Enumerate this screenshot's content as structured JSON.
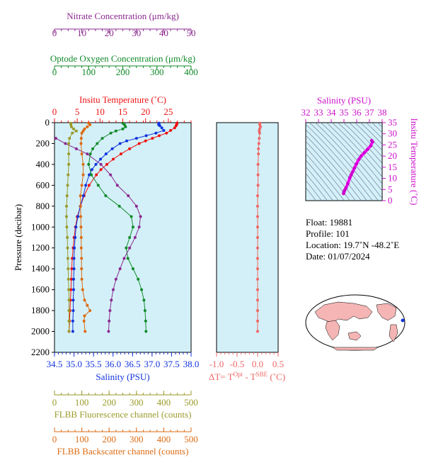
{
  "colors": {
    "nitrate": "#8b2a8f",
    "oxygen": "#118a2a",
    "temperature": "#ee1111",
    "salinity": "#1133dd",
    "fluorescence": "#9a9a2a",
    "backscatter": "#dd6a11",
    "dt": "#ee6666",
    "ts_title": "#cc11cc",
    "panel_bg": "#d3f0f8",
    "world_land": "#f5b5b5"
  },
  "chart_data": [
    {
      "type": "line",
      "ylabel": "Pressure (decibar)",
      "y_ticks": [
        0,
        200,
        400,
        600,
        800,
        1000,
        1200,
        1400,
        1600,
        1800,
        2000,
        2200
      ],
      "ylim": [
        0,
        2200
      ],
      "inverted_y": true,
      "axes": {
        "nitrate": {
          "label": "Nitrate Concentration (μm/kg)",
          "range": [
            0,
            50
          ],
          "ticks": [
            0,
            10,
            20,
            30,
            40,
            50
          ],
          "position": "top"
        },
        "oxygen": {
          "label": "Optode Oxygen Concentration (μm/kg)",
          "range": [
            0,
            400
          ],
          "ticks": [
            0,
            100,
            200,
            300,
            400
          ],
          "position": "top"
        },
        "temperature": {
          "label": "Insitu Temperature (˚C)",
          "range": [
            0,
            30
          ],
          "ticks": [
            0,
            5,
            10,
            15,
            20,
            25
          ],
          "position": "top"
        },
        "salinity": {
          "label": "Salinity (PSU)",
          "range": [
            34.5,
            38.0
          ],
          "ticks": [
            34.5,
            35.0,
            35.5,
            36.0,
            36.5,
            37.0,
            37.5,
            38.0
          ],
          "tick_labels": [
            "34.5",
            "35.0",
            "35.5",
            "36.0",
            "36.5",
            "37.0",
            "37.5",
            "38.0"
          ],
          "position": "bottom"
        },
        "fluorescence": {
          "label": "FLBB Fluorescence channel (counts)",
          "range": [
            0,
            500
          ],
          "ticks": [
            0,
            100,
            200,
            300,
            400,
            500
          ],
          "position": "bottom"
        },
        "backscatter": {
          "label": "FLBB Backscatter channel (counts)",
          "range": [
            0,
            500
          ],
          "ticks": [
            0,
            100,
            200,
            300,
            400,
            500
          ],
          "position": "bottom"
        }
      },
      "series": [
        {
          "key": "temperature",
          "axis": "temperature",
          "pressure": [
            5,
            10,
            20,
            30,
            50,
            75,
            100,
            125,
            150,
            175,
            200,
            250,
            300,
            350,
            400,
            450,
            500,
            600,
            700,
            800,
            900,
            1000,
            1100,
            1200,
            1300,
            1400,
            1500,
            1600,
            1700,
            1800,
            1900,
            2000
          ],
          "values": [
            26.9,
            26.9,
            26.8,
            26.7,
            26.4,
            25.5,
            24.6,
            23.0,
            21.5,
            20.0,
            18.6,
            16.5,
            14.6,
            12.9,
            11.5,
            10.2,
            9.2,
            7.6,
            6.5,
            5.7,
            5.0,
            4.6,
            4.3,
            4.1,
            3.9,
            3.8,
            3.7,
            3.6,
            3.5,
            3.4,
            3.3,
            3.2
          ]
        },
        {
          "key": "salinity",
          "axis": "salinity",
          "pressure": [
            5,
            10,
            20,
            30,
            50,
            75,
            100,
            125,
            150,
            175,
            200,
            250,
            300,
            350,
            400,
            450,
            500,
            600,
            700,
            800,
            900,
            1000,
            1100,
            1200,
            1300,
            1400,
            1500,
            1600,
            1700,
            1800,
            1900,
            2000
          ],
          "values": [
            37.18,
            37.17,
            37.17,
            37.2,
            37.25,
            37.3,
            37.1,
            36.85,
            36.6,
            36.35,
            36.18,
            35.98,
            35.82,
            35.68,
            35.56,
            35.46,
            35.39,
            35.3,
            35.24,
            35.16,
            35.1,
            35.05,
            35.03,
            35.01,
            35.0,
            35.0,
            34.99,
            34.99,
            34.98,
            34.98,
            34.97,
            34.97
          ]
        },
        {
          "key": "oxygen",
          "axis": "oxygen",
          "pressure": [
            5,
            20,
            40,
            60,
            80,
            100,
            150,
            200,
            250,
            300,
            400,
            500,
            600,
            700,
            800,
            900,
            1000,
            1100,
            1200,
            1300,
            1400,
            1500,
            1600,
            1700,
            1800,
            1900,
            2000
          ],
          "values": [
            200,
            205,
            208,
            200,
            180,
            165,
            140,
            125,
            112,
            105,
            100,
            108,
            128,
            150,
            190,
            225,
            230,
            220,
            210,
            215,
            230,
            245,
            255,
            262,
            265,
            267,
            268
          ]
        },
        {
          "key": "nitrate",
          "axis": "nitrate",
          "pressure": [
            150,
            200,
            250,
            300,
            400,
            500,
            600,
            700,
            800,
            900,
            1000,
            1100,
            1200,
            1300,
            1400,
            1500,
            1600,
            1700,
            1800,
            1900,
            2000
          ],
          "values": [
            0.5,
            4.0,
            8.0,
            12.0,
            17.0,
            20.5,
            23.0,
            27.0,
            30.0,
            31.5,
            31.0,
            29.5,
            27.5,
            25.5,
            24.0,
            22.5,
            21.5,
            20.8,
            20.3,
            20.0,
            19.8
          ]
        },
        {
          "key": "fluorescence",
          "axis": "fluorescence",
          "pressure": [
            5,
            20,
            40,
            60,
            80,
            100,
            150,
            200,
            300,
            400,
            500,
            600,
            700,
            800,
            900,
            1000,
            1100,
            1200,
            1300,
            1400,
            1500,
            1600,
            1700,
            1800,
            1900,
            2000
          ],
          "values": [
            60,
            60,
            62,
            70,
            80,
            65,
            55,
            52,
            52,
            52,
            50,
            48,
            46,
            44,
            44,
            45,
            47,
            48,
            49,
            50,
            51,
            52,
            53,
            53,
            53,
            53
          ]
        },
        {
          "key": "backscatter",
          "axis": "backscatter",
          "pressure": [
            5,
            20,
            40,
            60,
            80,
            100,
            150,
            200,
            300,
            400,
            500,
            600,
            700,
            800,
            900,
            1000,
            1100,
            1200,
            1300,
            1400,
            1500,
            1600,
            1700,
            1750,
            1800,
            1850,
            1900,
            2000
          ],
          "values": [
            125,
            130,
            120,
            110,
            105,
            100,
            98,
            97,
            100,
            105,
            105,
            100,
            95,
            95,
            96,
            97,
            98,
            98,
            99,
            99,
            100,
            103,
            110,
            120,
            130,
            110,
            108,
            112
          ]
        }
      ]
    },
    {
      "type": "line",
      "xlabel_parts": [
        "ΔT= T",
        "Opt",
        " - T",
        "SBE",
        " (˚C)"
      ],
      "xlim": [
        -1.0,
        0.5
      ],
      "x_ticks": [
        -1.0,
        -0.5,
        0.0,
        0.5
      ],
      "x_tick_labels": [
        "-1.0",
        "-0.5",
        "0.0",
        "0.5"
      ],
      "ylim": [
        0,
        2200
      ],
      "inverted_y": true,
      "series": [
        {
          "key": "dt",
          "pressure": [
            5,
            20,
            40,
            60,
            80,
            100,
            150,
            200,
            250,
            300,
            400,
            500,
            600,
            700,
            800,
            900,
            1000,
            1100,
            1200,
            1300,
            1400,
            1500,
            1600,
            1700,
            1800,
            1900,
            2000
          ],
          "values": [
            0.06,
            0.05,
            0.07,
            0.05,
            0.04,
            0.05,
            0.04,
            0.03,
            0.02,
            0.02,
            0.01,
            0.01,
            0.01,
            0.0,
            0.0,
            0.0,
            0.0,
            0.0,
            0.0,
            0.0,
            0.0,
            0.0,
            0.0,
            0.0,
            0.0,
            0.0,
            0.0
          ]
        }
      ]
    },
    {
      "type": "scatter",
      "title": "Salinity (PSU)",
      "ylabel": "Insitu Temperature (˚C)",
      "xlim": [
        32,
        38
      ],
      "x_ticks": [
        32,
        33,
        34,
        35,
        36,
        37,
        38
      ],
      "ylim": [
        0,
        35
      ],
      "y_ticks": [
        0,
        5,
        10,
        15,
        20,
        25,
        30,
        35
      ],
      "points": [
        [
          34.97,
          3.2
        ],
        [
          35.0,
          3.9
        ],
        [
          35.05,
          4.6
        ],
        [
          35.16,
          5.7
        ],
        [
          35.3,
          7.6
        ],
        [
          35.46,
          10.2
        ],
        [
          35.56,
          11.5
        ],
        [
          35.68,
          12.9
        ],
        [
          35.82,
          14.6
        ],
        [
          35.98,
          16.5
        ],
        [
          36.18,
          18.6
        ],
        [
          36.35,
          20.0
        ],
        [
          36.6,
          21.5
        ],
        [
          36.85,
          23.0
        ],
        [
          37.1,
          24.6
        ],
        [
          37.25,
          26.4
        ],
        [
          37.18,
          26.9
        ]
      ]
    }
  ],
  "info": {
    "float": "Float:  19881",
    "profile": "Profile:  101",
    "location": "Location:  19.7˚N  -48.2˚E",
    "date": "Date:  01/07/2024"
  }
}
